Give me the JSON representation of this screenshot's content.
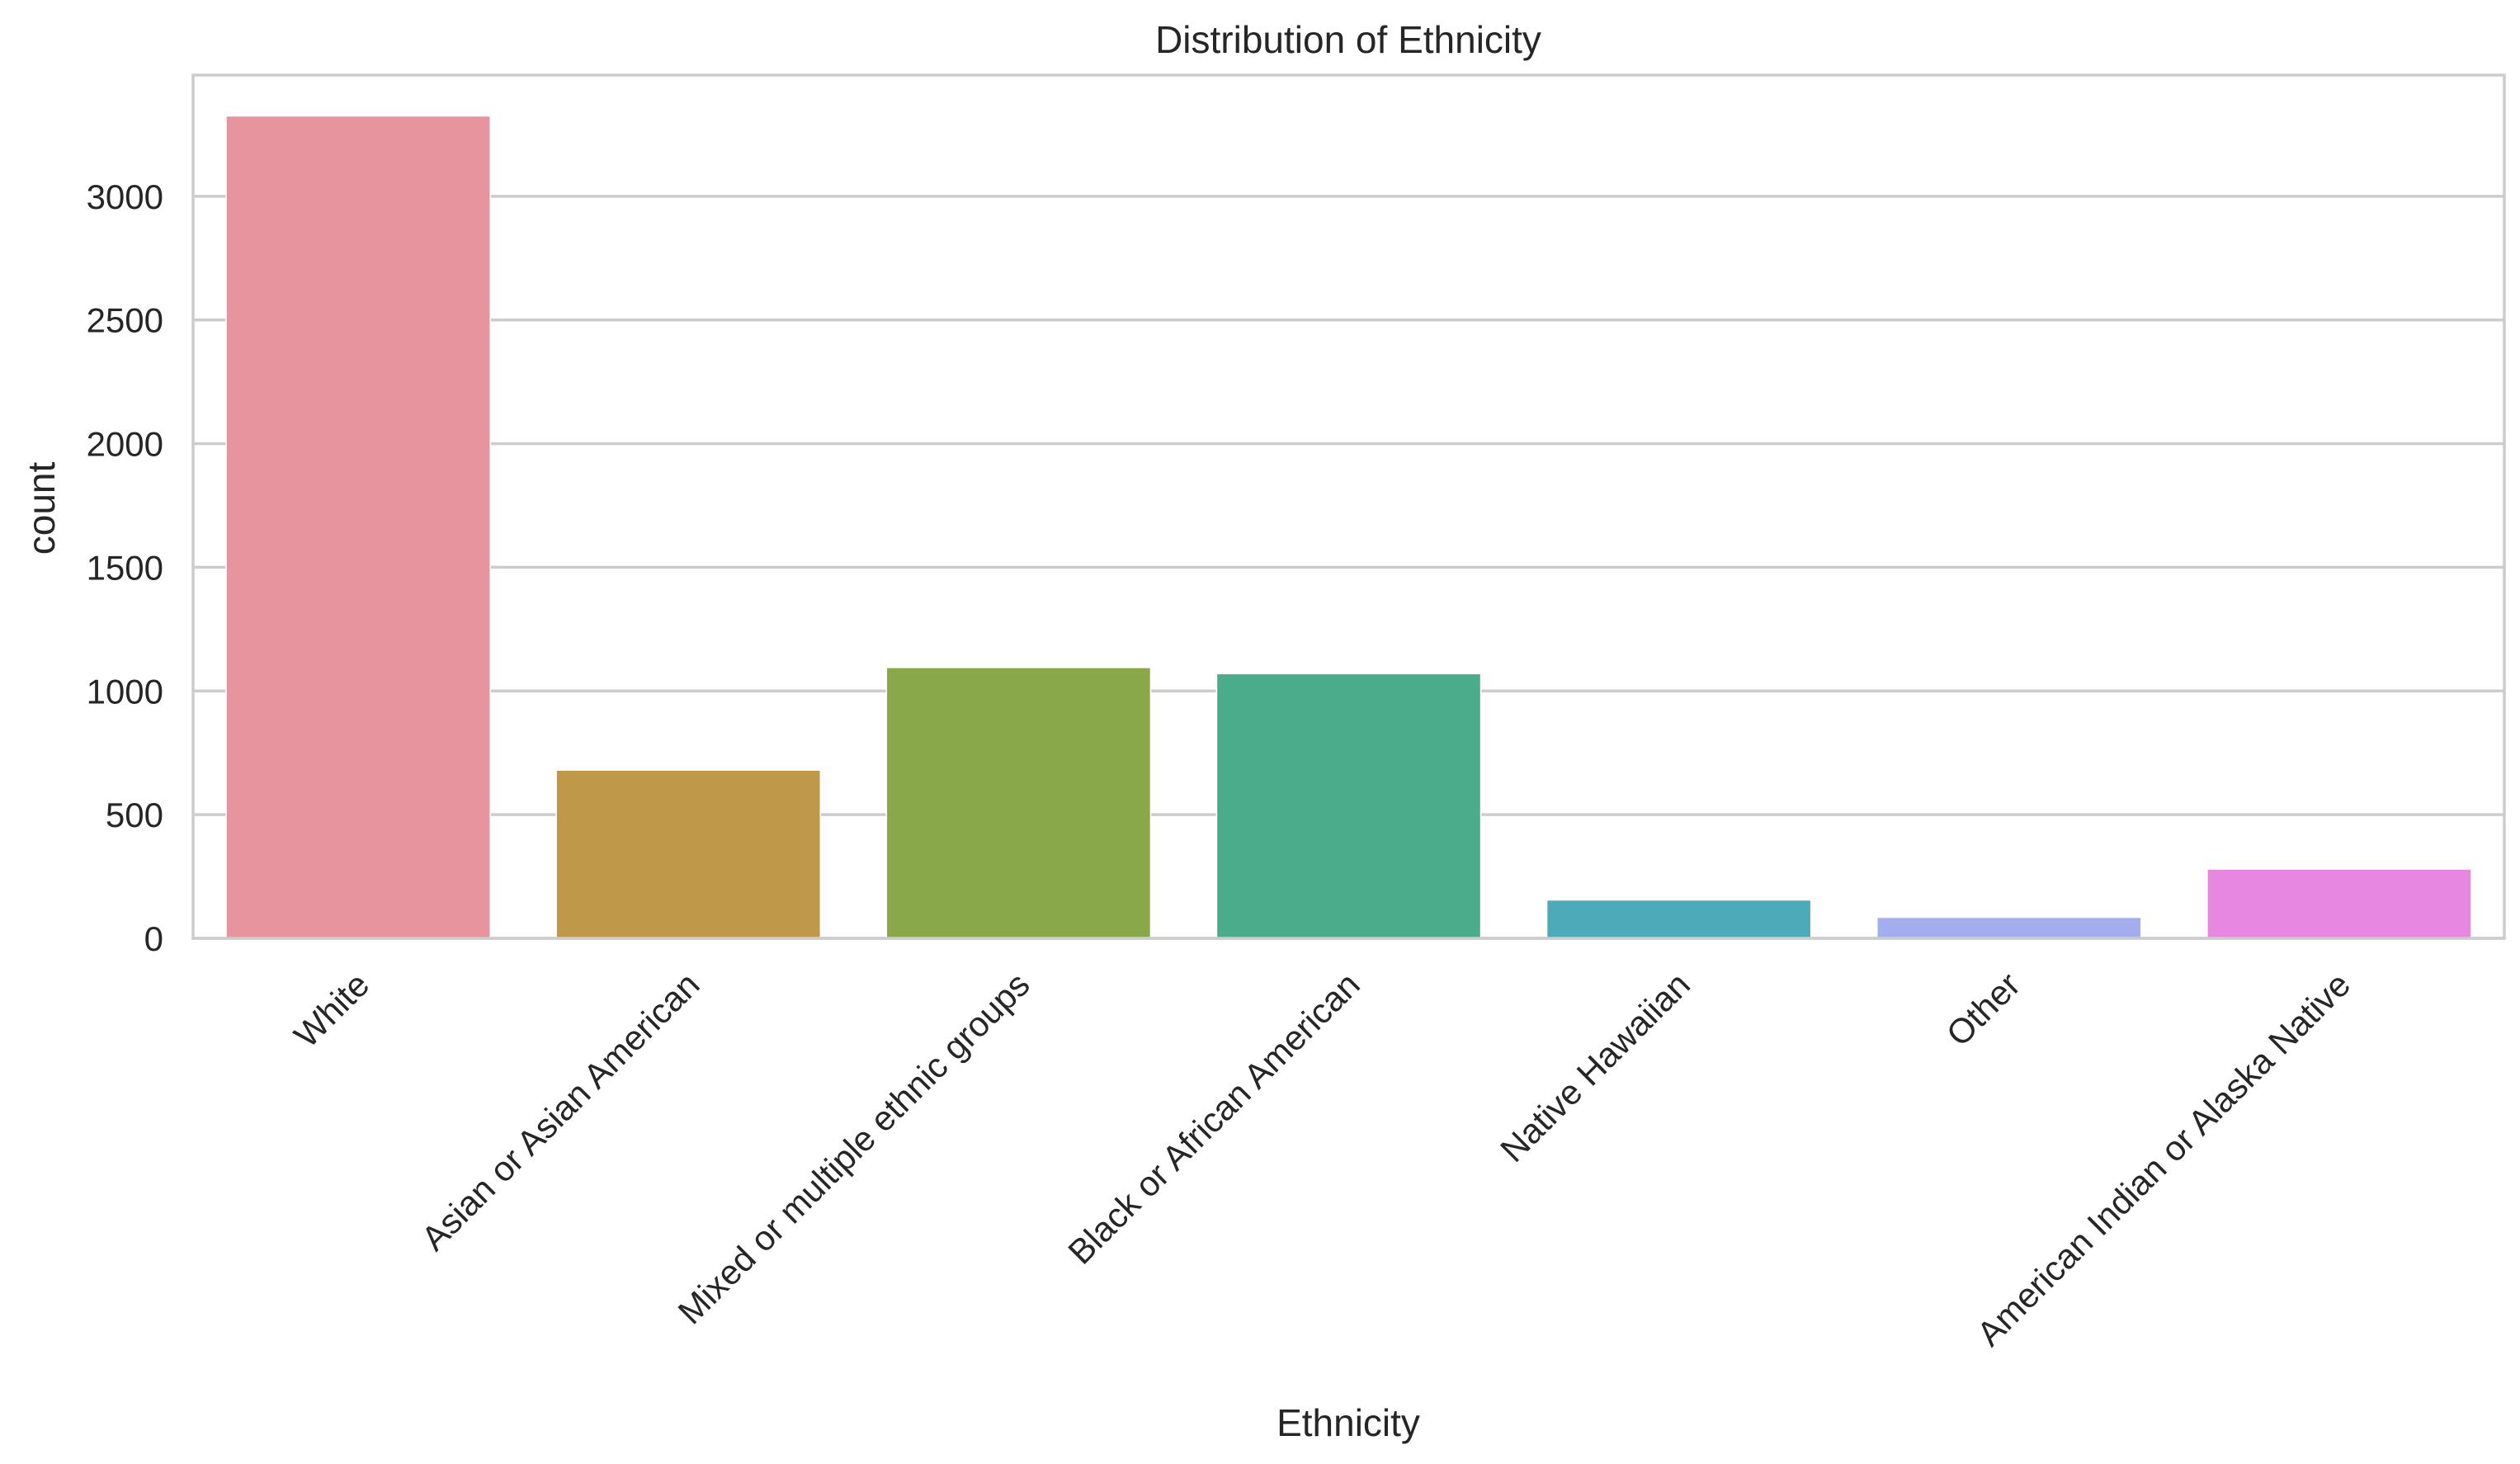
{
  "chart_data": {
    "type": "bar",
    "title": "Distribution of Ethnicity",
    "xlabel": "Ethnicity",
    "ylabel": "count",
    "categories": [
      "White",
      "Asian or Asian American",
      "Mixed or multiple ethnic groups",
      "Black or African American",
      "Native Hawaiian",
      "Other",
      "American Indian or Alaska Native"
    ],
    "values": [
      3325,
      680,
      1095,
      1070,
      155,
      85,
      280
    ],
    "colors": [
      "#e8949f",
      "#c0984a",
      "#88a84a",
      "#4bac8c",
      "#4daab9",
      "#a4aeee",
      "#e688e2"
    ],
    "yticks": [
      0,
      500,
      1000,
      1500,
      2000,
      2500,
      3000
    ],
    "ylim": [
      0,
      3490
    ],
    "grid": true,
    "legend": "none"
  }
}
